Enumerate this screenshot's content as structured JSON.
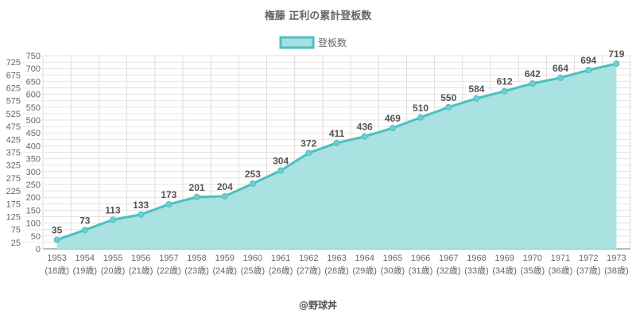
{
  "chart_data": {
    "type": "area",
    "title": "権藤 正利の累計登板数",
    "legend": {
      "entries": [
        "登板数"
      ],
      "placement": "top"
    },
    "categories": [
      "1953",
      "1954",
      "1955",
      "1956",
      "1957",
      "1958",
      "1959",
      "1960",
      "1961",
      "1962",
      "1963",
      "1964",
      "1965",
      "1966",
      "1967",
      "1968",
      "1969",
      "1970",
      "1971",
      "1972",
      "1973"
    ],
    "sub_labels": [
      "(18歳)",
      "(19歳)",
      "(20歳)",
      "(21歳)",
      "(22歳)",
      "(23歳)",
      "(24歳)",
      "(25歳)",
      "(26歳)",
      "(27歳)",
      "(28歳)",
      "(29歳)",
      "(30歳)",
      "(31歳)",
      "(32歳)",
      "(33歳)",
      "(34歳)",
      "(35歳)",
      "(36歳)",
      "(37歳)",
      "(38歳)"
    ],
    "series": [
      {
        "name": "登板数",
        "values": [
          35,
          73,
          113,
          133,
          173,
          201,
          204,
          253,
          304,
          372,
          411,
          436,
          469,
          510,
          550,
          584,
          612,
          642,
          664,
          694,
          719
        ]
      }
    ],
    "ylim": [
      0,
      750
    ],
    "ystep": 25,
    "grid": true,
    "colors": {
      "line": "#4bc0c0",
      "fill": "#a5dfdf"
    },
    "footer": "@野球丼"
  }
}
